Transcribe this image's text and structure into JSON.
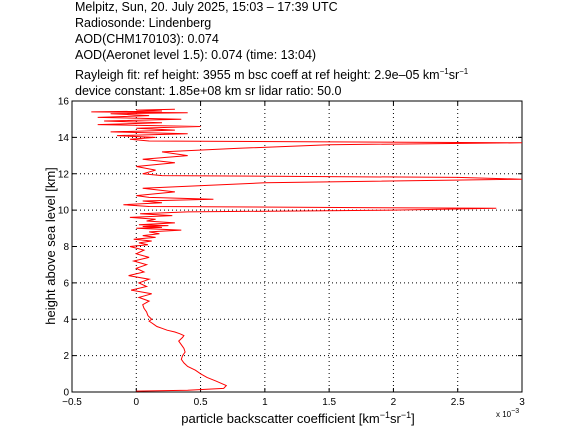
{
  "header": {
    "line1": "Melpitz, Sun, 20. July 2025, 15:03 – 17:39 UTC",
    "line2": "Radiosonde: Lindenberg",
    "line3": "AOD(CHM170103): 0.074",
    "line4": "AOD(Aeronet level 1.5): 0.074   (time: 13:04)",
    "line5_a": "Rayleigh fit:     ref height: 3955 m     bsc coeff at ref height: 2.9e–05 km",
    "line5_sup1": "−1",
    "line5_b": "sr",
    "line5_sup2": "−1",
    "line6": "device constant: 1.85e+08 km sr     lidar ratio: 50.0"
  },
  "chart_data": {
    "type": "line",
    "xlabel": "particle backscatter coefficient [km",
    "xlabel_sup1": "−1",
    "xlabel_mid": "sr",
    "xlabel_sup2": "−1",
    "xlabel_end": "]",
    "ylabel": "height above sea level [km]",
    "x_multiplier": "x 10",
    "x_multiplier_exp": "−3",
    "xlim": [
      -0.5,
      3
    ],
    "ylim": [
      0,
      16
    ],
    "xticks": [
      -0.5,
      0,
      0.5,
      1,
      1.5,
      2,
      2.5,
      3
    ],
    "xtick_labels": [
      "−0.5",
      "0",
      "0.5",
      "1",
      "1.5",
      "2",
      "2.5",
      "3"
    ],
    "yticks": [
      0,
      2,
      4,
      6,
      8,
      10,
      12,
      14,
      16
    ],
    "ytick_labels": [
      "0",
      "2",
      "4",
      "6",
      "8",
      "10",
      "12",
      "14",
      "16"
    ],
    "grid": true,
    "line_color": "#ff0000",
    "series": [
      {
        "x": [
          0.0,
          0.4,
          0.68,
          0.7,
          0.62,
          0.55,
          0.5,
          0.46,
          0.4,
          0.37,
          0.35,
          0.36,
          0.38,
          0.37,
          0.35,
          0.33,
          0.36,
          0.37,
          0.34,
          0.3,
          0.24,
          0.2,
          0.16,
          0.14,
          0.12,
          0.1,
          0.12,
          0.09,
          0.08,
          0.06,
          0.05,
          0.1,
          0.02,
          0.12,
          -0.04,
          0.08,
          0.02,
          0.1,
          -0.06,
          0.06,
          0.0,
          0.08,
          -0.02,
          0.1,
          0.0,
          0.06,
          -0.05,
          0.09,
          0.02,
          0.12,
          -0.02,
          0.15,
          0.05,
          0.18,
          0.1,
          0.35,
          0.0,
          0.2,
          0.05,
          0.25,
          0.02,
          0.3,
          0.08,
          0.15,
          -0.05,
          0.28,
          0.03,
          0.4,
          2.0,
          2.8,
          0.1,
          -0.1,
          0.2,
          0.05,
          0.6,
          0.1,
          0.0,
          0.3,
          0.05,
          1.0,
          3.0,
          2.5,
          0.2,
          0.05,
          0.15,
          0.0,
          0.3,
          0.05,
          0.4,
          0.2,
          0.8,
          1.5,
          3.0,
          0.1,
          -0.05,
          0.15,
          -0.15,
          0.4,
          -0.2,
          0.3,
          0.0,
          0.5,
          -0.3,
          0.2,
          -0.25,
          0.35,
          -0.3,
          0.1,
          -0.2,
          0.4,
          -0.35,
          0.2,
          0.0,
          0.3
        ],
        "y": [
          0.05,
          0.1,
          0.2,
          0.35,
          0.6,
          0.8,
          1.0,
          1.2,
          1.4,
          1.6,
          1.8,
          2.0,
          2.2,
          2.4,
          2.6,
          2.8,
          3.0,
          3.1,
          3.2,
          3.3,
          3.4,
          3.5,
          3.6,
          3.7,
          3.8,
          3.9,
          4.0,
          4.2,
          4.4,
          4.6,
          4.8,
          5.0,
          5.2,
          5.4,
          5.6,
          5.8,
          6.0,
          6.2,
          6.4,
          6.6,
          6.8,
          7.0,
          7.2,
          7.4,
          7.6,
          7.8,
          8.0,
          8.1,
          8.2,
          8.3,
          8.4,
          8.5,
          8.6,
          8.7,
          8.8,
          8.9,
          9.0,
          9.05,
          9.1,
          9.15,
          9.2,
          9.3,
          9.4,
          9.5,
          9.6,
          9.7,
          9.8,
          9.9,
          10.0,
          10.1,
          10.2,
          10.3,
          10.4,
          10.5,
          10.6,
          10.7,
          10.8,
          11.0,
          11.2,
          11.5,
          11.7,
          11.8,
          11.9,
          12.0,
          12.2,
          12.4,
          12.6,
          12.8,
          13.0,
          13.2,
          13.4,
          13.6,
          13.7,
          13.8,
          13.9,
          14.0,
          14.1,
          14.2,
          14.3,
          14.4,
          14.5,
          14.6,
          14.7,
          14.8,
          14.9,
          15.0,
          15.1,
          15.2,
          15.3,
          15.35,
          15.4,
          15.45,
          15.5,
          15.55
        ]
      }
    ]
  }
}
